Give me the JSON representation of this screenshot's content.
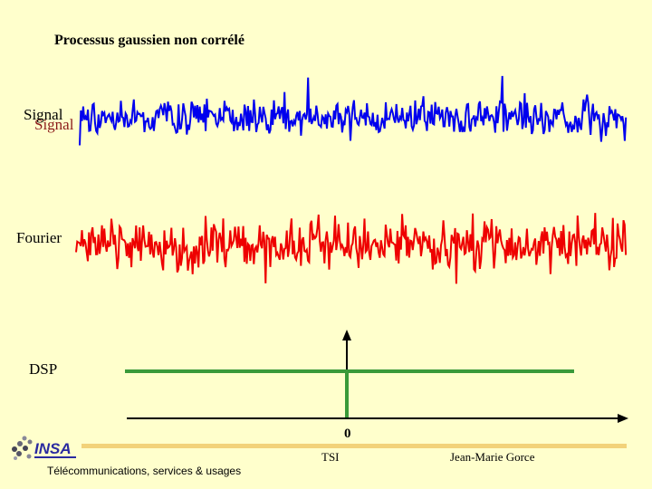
{
  "slide": {
    "title": "Processus gaussien non corrélé",
    "signal_label": "Signal",
    "signal_label_shadow": "Signal",
    "fourier_label": "Fourier",
    "dsp_label": "DSP",
    "zero_label": "0"
  },
  "footer": {
    "left_text": "Télécommunications, services & usages",
    "center_text": "TSI",
    "right_text": "Jean-Marie Gorce",
    "logo_text": "INSA"
  },
  "colors": {
    "signal": "#0000ee",
    "fourier": "#ee0000",
    "dsp": "#3a9a3a"
  }
}
